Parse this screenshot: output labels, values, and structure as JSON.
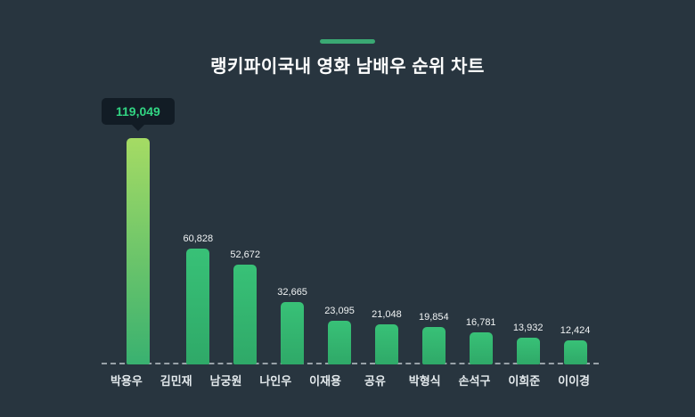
{
  "page": {
    "background_color": "#28353f",
    "accent_color": "#3aa873"
  },
  "header": {
    "title": "랭키파이국내 영화 남배우 순위 차트"
  },
  "tooltip": {
    "value": "119,049",
    "background_color": "#121c25",
    "text_color": "#32d583"
  },
  "chart_data": {
    "type": "bar",
    "title": "랭키파이국내 영화 남배우 순위 차트",
    "categories": [
      "박용우",
      "김민재",
      "남궁원",
      "나인우",
      "이재용",
      "공유",
      "박형식",
      "손석구",
      "이희준",
      "이이경"
    ],
    "values": [
      119049,
      60828,
      52672,
      32665,
      23095,
      21048,
      19854,
      16781,
      13932,
      12424
    ],
    "values_formatted": [
      "119,049",
      "60,828",
      "52,672",
      "32,665",
      "23,095",
      "21,048",
      "19,854",
      "16,781",
      "13,932",
      "12,424"
    ],
    "xlabel": "",
    "ylabel": "",
    "ylim": [
      0,
      119049
    ],
    "grid": "off",
    "legend": "none",
    "baseline_style": "dashed",
    "bar_color_top": "#38c177",
    "bar_color_bottom": "#2fa968",
    "leader_bar_color_top": "#a5db64",
    "leader_bar_color_bottom": "#39b170",
    "highlighted_bar_index": 0,
    "highlighted_value_label": "119,049"
  }
}
